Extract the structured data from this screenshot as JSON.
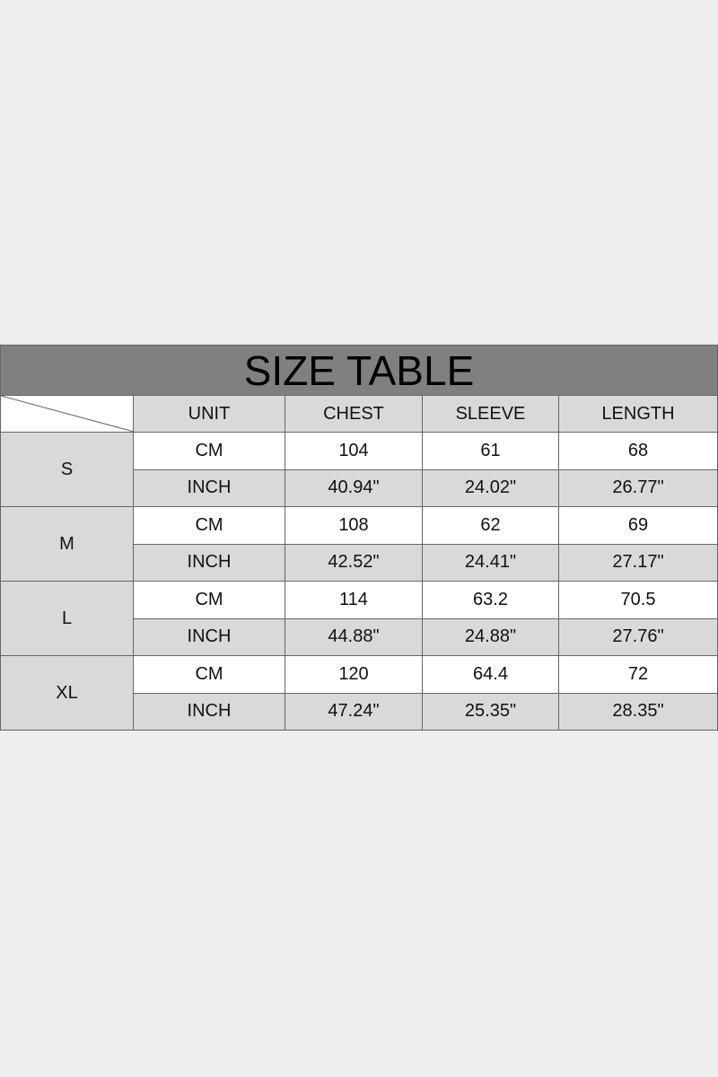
{
  "title": "SIZE TABLE",
  "headers": [
    "UNIT",
    "CHEST",
    "SLEEVE",
    "LENGTH"
  ],
  "sizes": [
    {
      "size": "S",
      "rows": [
        [
          "CM",
          "104",
          "61",
          "68"
        ],
        [
          "INCH",
          "40.94\"",
          "24.02\"",
          "26.77\""
        ]
      ]
    },
    {
      "size": "M",
      "rows": [
        [
          "CM",
          "108",
          "62",
          "69"
        ],
        [
          "INCH",
          "42.52\"",
          "24.41\"",
          "27.17\""
        ]
      ]
    },
    {
      "size": "L",
      "rows": [
        [
          "CM",
          "114",
          "63.2",
          "70.5"
        ],
        [
          "INCH",
          "44.88\"",
          "24.88\"",
          "27.76\""
        ]
      ]
    },
    {
      "size": "XL",
      "rows": [
        [
          "CM",
          "120",
          "64.4",
          "72"
        ],
        [
          "INCH",
          "47.24\"",
          "25.35\"",
          "28.35\""
        ]
      ]
    }
  ],
  "colors": {
    "background": "#eeeeee",
    "title_bar": "#808080",
    "shaded": "#d9d9d9"
  }
}
